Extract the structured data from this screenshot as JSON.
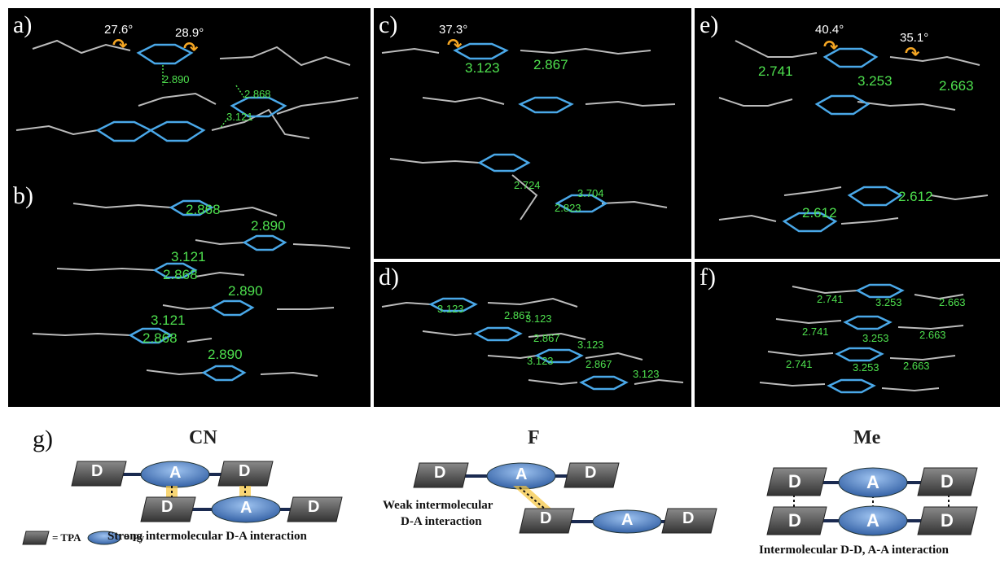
{
  "panels": {
    "a": {
      "label": "a)",
      "angle1": "27.6°",
      "angle2": "28.9°",
      "d1": "2.890",
      "d2": "2.868",
      "d3": "3.121"
    },
    "b": {
      "label": "b)",
      "d1": "2.868",
      "d2": "2.890",
      "d3": "3.121",
      "d4": "2.868",
      "d5": "2.890",
      "d6": "3.121",
      "d7": "2.868",
      "d8": "2.890"
    },
    "c": {
      "label": "c)",
      "angle1": "37.3°",
      "d1": "3.123",
      "d2": "2.867",
      "d3": "2.724",
      "d4": "3.704",
      "d5": "2.823"
    },
    "d": {
      "label": "d)",
      "d1": "3.123",
      "d2": "2.867",
      "d3": "3.123",
      "d4": "2.867",
      "d5": "3.123",
      "d6": "3.123",
      "d7": "2.867",
      "d8": "3.123"
    },
    "e": {
      "label": "e)",
      "angle1": "40.4°",
      "angle2": "35.1°",
      "d1": "2.741",
      "d2": "3.253",
      "d3": "2.663",
      "d4": "2.612",
      "d5": "2.612"
    },
    "f": {
      "label": "f)",
      "d1": "2.741",
      "d2": "3.253",
      "d3": "2.663",
      "d4": "2.741",
      "d5": "3.253",
      "d6": "2.663",
      "d7": "2.741",
      "d8": "3.253",
      "d9": "2.663"
    }
  },
  "g": {
    "label": "g)",
    "cn": {
      "title": "CN",
      "caption": "Strong intermolecular D-A interaction"
    },
    "f": {
      "title": "F",
      "caption1": "Weak intermolecular",
      "caption2": "D-A interaction"
    },
    "me": {
      "title": "Me",
      "caption": "Intermolecular D-D, A-A interaction"
    },
    "legend": {
      "tpa": "= TPA",
      "py": "= Py"
    },
    "block_d": "D",
    "block_a": "A"
  },
  "colors": {
    "background": "#000000",
    "pyrene": "#4aa8e8",
    "contact": "#4ee04e",
    "arrow": "#f5a623",
    "donor_block": "#555555",
    "acceptor_block": "#3d6fb5"
  }
}
